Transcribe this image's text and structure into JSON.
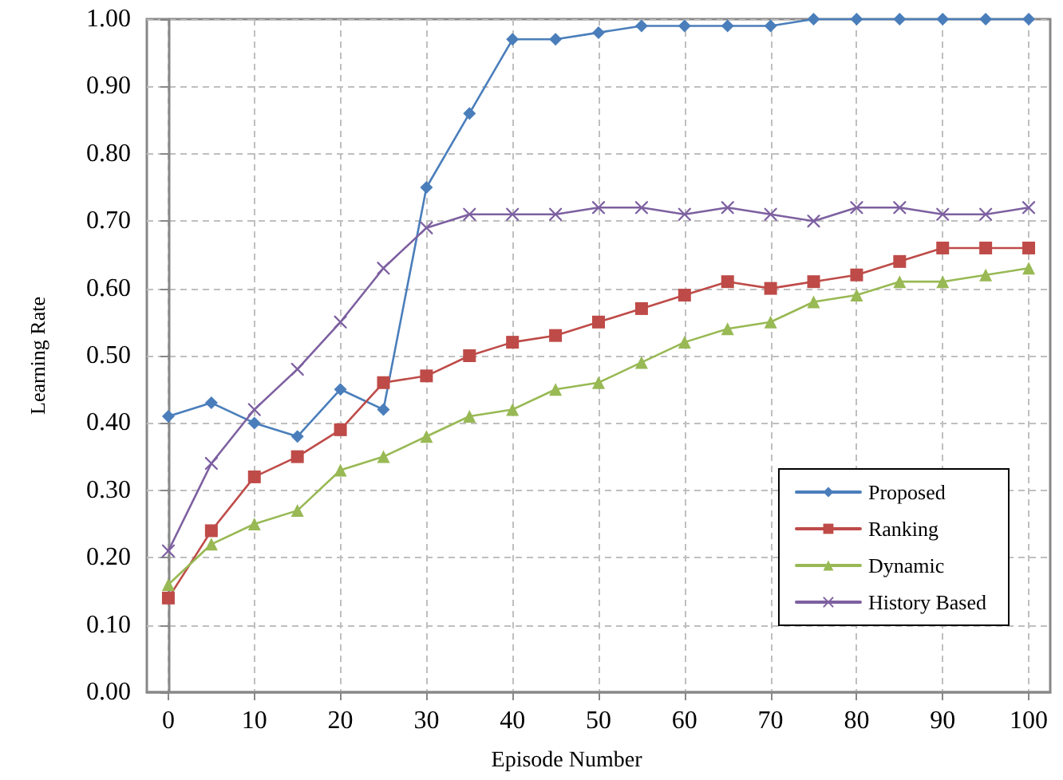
{
  "chart_data": {
    "type": "line",
    "xlabel": "Episode Number",
    "ylabel": "Learning Rate",
    "x": [
      0,
      5,
      10,
      15,
      20,
      25,
      30,
      35,
      40,
      45,
      50,
      55,
      60,
      65,
      70,
      75,
      80,
      85,
      90,
      95,
      100
    ],
    "xlim": [
      -2.5,
      102.5
    ],
    "xticks": [
      0,
      10,
      20,
      30,
      40,
      50,
      60,
      70,
      80,
      90,
      100
    ],
    "ylim": [
      0,
      1
    ],
    "yticks": [
      {
        "value": 0,
        "label": "0.00"
      },
      {
        "value": 0.1,
        "label": "0.10"
      },
      {
        "value": 0.2,
        "label": "0.20"
      },
      {
        "value": 0.3,
        "label": "0.30"
      },
      {
        "value": 0.4,
        "label": "0.40"
      },
      {
        "value": 0.5,
        "label": "0.50"
      },
      {
        "value": 0.6,
        "label": "0.60"
      },
      {
        "value": 0.7,
        "label": "0.70"
      },
      {
        "value": 0.8,
        "label": "0.80"
      },
      {
        "value": 0.9,
        "label": "0.90"
      },
      {
        "value": 1,
        "label": "1.00"
      }
    ],
    "grid": true,
    "legend": "bottom right",
    "line_style": "solid",
    "series": [
      {
        "name": "Proposed",
        "color": "#4a7ebb",
        "marker": "diamond",
        "values": [
          0.41,
          0.43,
          0.4,
          0.38,
          0.45,
          0.42,
          0.75,
          0.86,
          0.97,
          0.97,
          0.98,
          0.99,
          0.99,
          0.99,
          0.99,
          1,
          1,
          1,
          1,
          1,
          1
        ]
      },
      {
        "name": "Ranking",
        "color": "#be4b48",
        "marker": "square",
        "values": [
          0.14,
          0.24,
          0.32,
          0.35,
          0.39,
          0.46,
          0.47,
          0.5,
          0.52,
          0.53,
          0.55,
          0.57,
          0.59,
          0.61,
          0.6,
          0.61,
          0.62,
          0.64,
          0.66,
          0.66,
          0.66
        ]
      },
      {
        "name": "Dynamic",
        "color": "#98b954",
        "marker": "triangle",
        "values": [
          0.16,
          0.22,
          0.25,
          0.27,
          0.33,
          0.35,
          0.38,
          0.41,
          0.42,
          0.45,
          0.46,
          0.49,
          0.52,
          0.54,
          0.55,
          0.58,
          0.59,
          0.61,
          0.61,
          0.62,
          0.63
        ]
      },
      {
        "name": "History Based",
        "color": "#7d60a0",
        "marker": "cross",
        "values": [
          0.21,
          0.34,
          0.42,
          0.48,
          0.55,
          0.63,
          0.69,
          0.71,
          0.71,
          0.71,
          0.72,
          0.72,
          0.71,
          0.72,
          0.71,
          0.7,
          0.72,
          0.72,
          0.71,
          0.71,
          0.72
        ]
      }
    ]
  }
}
